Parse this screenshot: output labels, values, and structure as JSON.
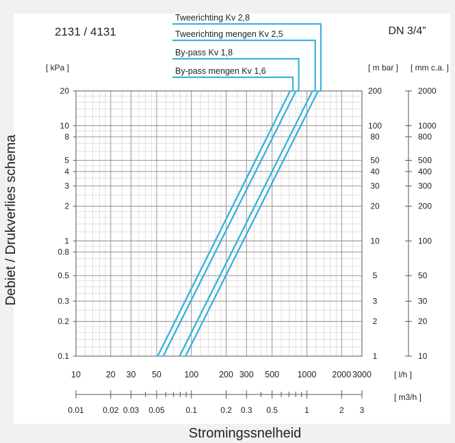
{
  "chart_data": {
    "type": "line",
    "title_left": "2131 / 4131",
    "title_right": "DN 3/4”",
    "ylabel_side": "Debiet / Drukverlies schema",
    "xlabel": "Stromingssnelheid",
    "left_unit": "[ kPa ]",
    "right_unit_mbar": "[ m bar ]",
    "right_unit_mmca": "[ mm c.a. ]",
    "x_unit_lh": "[ l/h ]",
    "x_unit_m3h": "[ m3/h ]",
    "x_scale": "log",
    "y_scale": "log",
    "xlim": [
      10,
      3000
    ],
    "ylim": [
      0.1,
      20
    ],
    "grid": true,
    "x_ticks": [
      "10",
      "20",
      "30",
      "50",
      "100",
      "200",
      "300",
      "500",
      "1000",
      "2000",
      "3000"
    ],
    "x_tick_values": [
      10,
      20,
      30,
      50,
      100,
      200,
      300,
      500,
      1000,
      2000,
      3000
    ],
    "m3h_ticks": [
      "0.01",
      "0.02",
      "0.03",
      "0.05",
      "0.1",
      "0.2",
      "0.3",
      "0.5",
      "1",
      "2",
      "3"
    ],
    "m3h_tick_values": [
      0.01,
      0.02,
      0.03,
      0.05,
      0.1,
      0.2,
      0.3,
      0.5,
      1,
      2,
      3
    ],
    "y_ticks": [
      "0.1",
      "0.2",
      "0.3",
      "0.5",
      "0.8",
      "1",
      "2",
      "3",
      "4",
      "5",
      "8",
      "10",
      "20"
    ],
    "y_tick_values": [
      0.1,
      0.2,
      0.3,
      0.5,
      0.8,
      1,
      2,
      3,
      4,
      5,
      8,
      10,
      20
    ],
    "mbar_ticks": [
      "1",
      "2",
      "3",
      "5",
      "10",
      "20",
      "30",
      "40",
      "50",
      "80",
      "100",
      "200"
    ],
    "mbar_tick_values": [
      1,
      2,
      3,
      5,
      10,
      20,
      30,
      40,
      50,
      80,
      100,
      200
    ],
    "mmca_ticks": [
      "10",
      "20",
      "30",
      "50",
      "100",
      "200",
      "300",
      "400",
      "500",
      "800",
      "1000",
      "2000"
    ],
    "mmca_tick_values": [
      10,
      20,
      30,
      50,
      100,
      200,
      300,
      400,
      500,
      800,
      1000,
      2000
    ],
    "line_color": "#3ab3dc",
    "series": [
      {
        "name": "Tweerichting Kv 2,8",
        "x": [
          89,
          1252
        ],
        "y": [
          0.1,
          20
        ]
      },
      {
        "name": "Tweerichting mengen Kv 2,5",
        "x": [
          79,
          1118
        ],
        "y": [
          0.1,
          20
        ]
      },
      {
        "name": "By-pass Kv 1,8",
        "x": [
          57,
          805
        ],
        "y": [
          0.1,
          20
        ]
      },
      {
        "name": "By-pass mengen Kv 1,6",
        "x": [
          51,
          716
        ],
        "y": [
          0.1,
          20
        ]
      }
    ]
  }
}
